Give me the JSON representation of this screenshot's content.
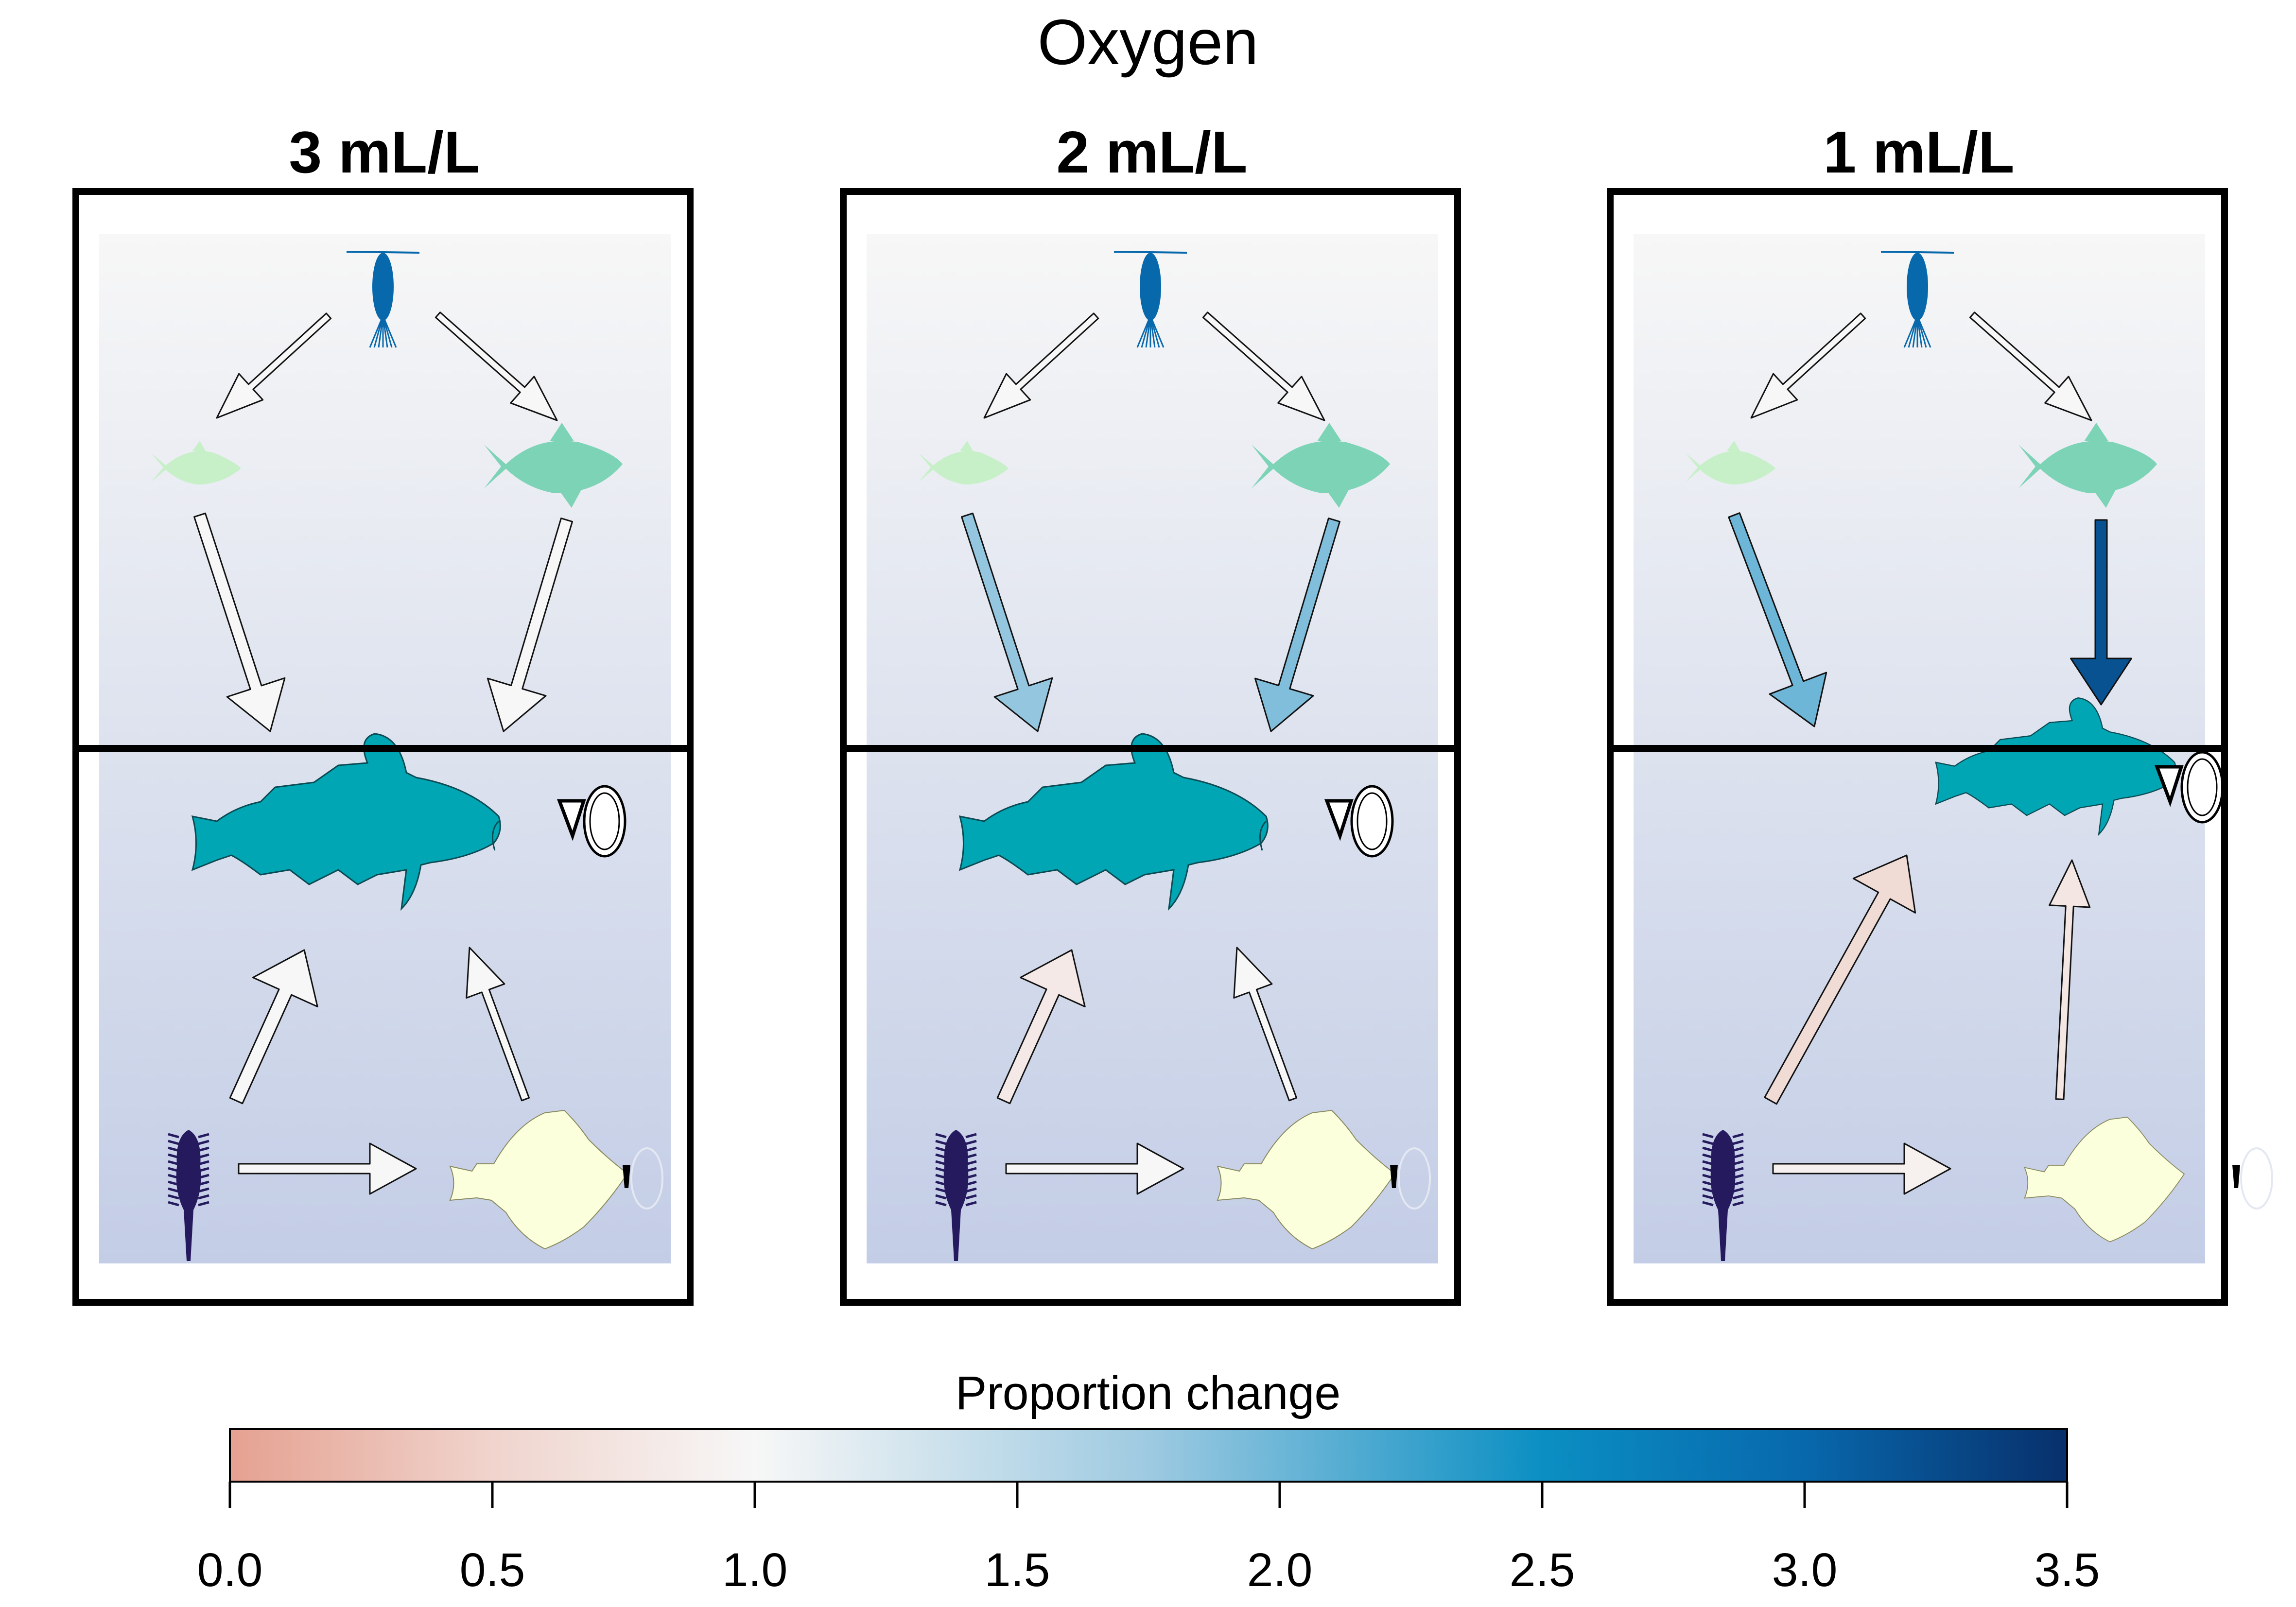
{
  "figure": {
    "title": "Oxygen",
    "panels": [
      {
        "label": "3 mL/L",
        "arrows": {
          "zoo_left": 1.0,
          "zoo_right": 1.0,
          "fish_left_cod": 1.0,
          "fish_right_cod": 1.0,
          "worm_cod": 1.0,
          "flat_cod": 1.0,
          "worm_flat": 1.0
        },
        "cod_scale": 1.0,
        "flatfish_scale": 1.0
      },
      {
        "label": "2 mL/L",
        "arrows": {
          "zoo_left": 1.0,
          "zoo_right": 1.0,
          "fish_left_cod": 1.8,
          "fish_right_cod": 1.9,
          "worm_cod": 0.8,
          "flat_cod": 1.0,
          "worm_flat": 1.0
        },
        "cod_scale": 1.0,
        "flatfish_scale": 1.0
      },
      {
        "label": "1 mL/L",
        "arrows": {
          "zoo_left": 1.0,
          "zoo_right": 1.0,
          "fish_left_cod": 2.0,
          "fish_right_cod": 3.2,
          "worm_cod": 0.6,
          "flat_cod": 0.75,
          "worm_flat": 0.9
        },
        "cod_scale": 0.78,
        "flatfish_scale": 0.9
      }
    ],
    "icons": [
      "zooplankton-icon",
      "small-pelagic-fish-icon",
      "herring-icon",
      "cod-icon",
      "polychaete-icon",
      "flatfish-icon",
      "oxygen-icon"
    ],
    "colors": {
      "zooplankton": "#0868ac",
      "small_fish": "#c7f0c9",
      "herring": "#7dd3b6",
      "cod": "#00a6b4",
      "polychaete": "#251a5e",
      "flatfish": "#fbffdc",
      "bg_top": "#f7f7f7",
      "bg_bottom": "#c3cde6",
      "frame": "#000000"
    }
  },
  "colorbar": {
    "title": "Proportion change",
    "ticks": [
      "0.0",
      "0.5",
      "1.0",
      "1.5",
      "2.0",
      "2.5",
      "3.0",
      "3.5"
    ],
    "range": [
      0,
      3.5
    ],
    "stops": [
      {
        "v": 0.0,
        "c": "#e5a191"
      },
      {
        "v": 0.5,
        "c": "#f0d4cd"
      },
      {
        "v": 1.0,
        "c": "#f7f7f7"
      },
      {
        "v": 1.75,
        "c": "#9ecae1"
      },
      {
        "v": 2.5,
        "c": "#0b8fc3"
      },
      {
        "v": 3.0,
        "c": "#0868ac"
      },
      {
        "v": 3.5,
        "c": "#08306b"
      }
    ]
  }
}
